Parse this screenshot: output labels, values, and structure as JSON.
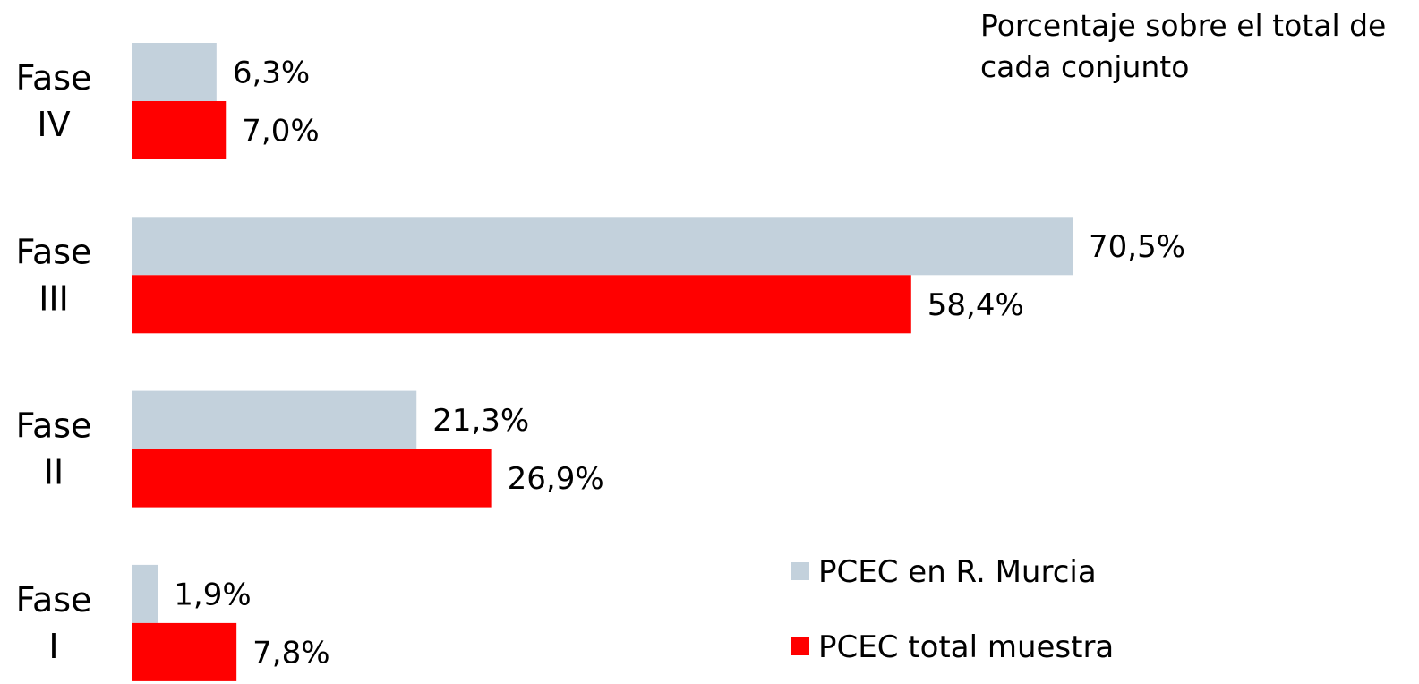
{
  "chart_data": {
    "type": "bar",
    "orientation": "horizontal",
    "annotation": "Porcentaje sobre el total de cada conjunto",
    "categories": [
      "Fase IV",
      "Fase III",
      "Fase II",
      "Fase I"
    ],
    "series": [
      {
        "name": "PCEC en R. Murcia",
        "color": "#c3d1dc",
        "values": [
          6.3,
          70.5,
          21.3,
          1.9
        ],
        "value_labels": [
          "6,3%",
          "70,5%",
          "21,3%",
          "1,9%"
        ]
      },
      {
        "name": "PCEC total muestra",
        "color": "#ff0000",
        "values": [
          7.0,
          58.4,
          26.9,
          7.8
        ],
        "value_labels": [
          "7,0%",
          "58,4%",
          "26,9%",
          "7,8%"
        ]
      }
    ]
  }
}
